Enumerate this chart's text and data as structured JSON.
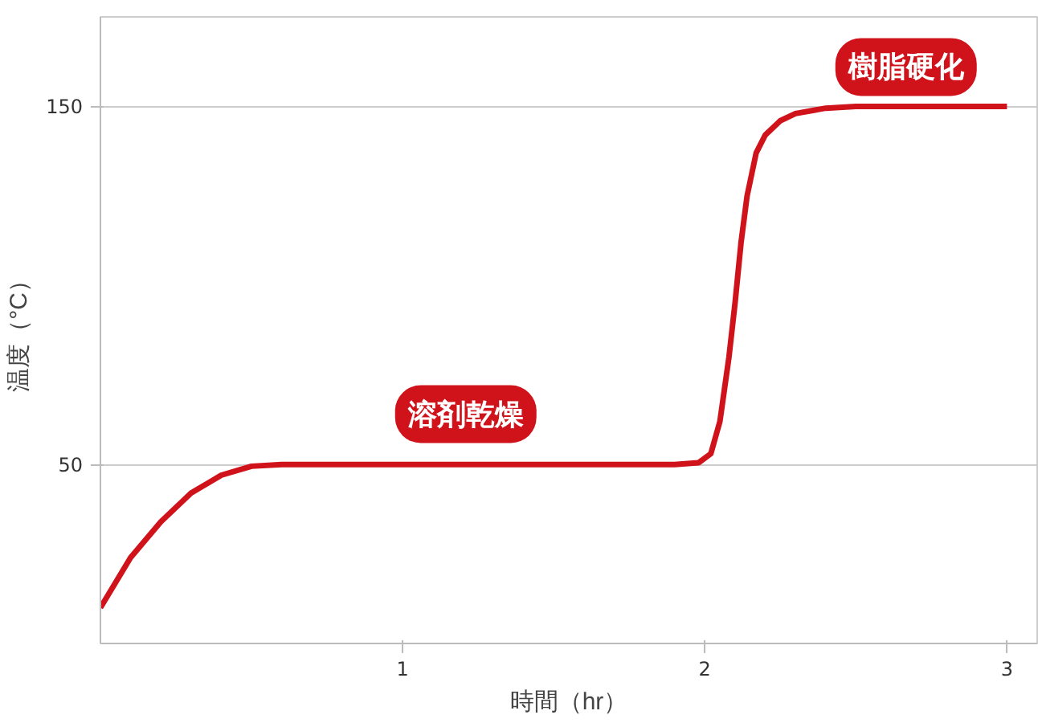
{
  "chart_data": {
    "type": "line",
    "xlabel": "時間（hr）",
    "ylabel": "温度（°C）",
    "xlim": [
      0,
      3.1
    ],
    "ylim": [
      0,
      175
    ],
    "xticks": [
      1,
      2,
      3
    ],
    "yticks": [
      50,
      150
    ],
    "grid": "y",
    "marker": "none",
    "line_style": "solid",
    "series": [
      {
        "color": "#d0121b",
        "x": [
          0,
          0.05,
          0.1,
          0.15,
          0.2,
          0.3,
          0.4,
          0.5,
          0.6,
          0.8,
          1.0,
          1.5,
          1.9,
          1.98,
          2.02,
          2.05,
          2.08,
          2.1,
          2.12,
          2.14,
          2.17,
          2.2,
          2.25,
          2.3,
          2.4,
          2.5,
          3.0
        ],
        "values": [
          10,
          17,
          24,
          29,
          34,
          42,
          47,
          49.5,
          50,
          50,
          50,
          50,
          50,
          50.5,
          53,
          62,
          80,
          95,
          112,
          125,
          137,
          142,
          146,
          148,
          149.5,
          150,
          150
        ]
      }
    ],
    "annotations": [
      "溶剤乾燥",
      "樹脂硬化"
    ]
  }
}
